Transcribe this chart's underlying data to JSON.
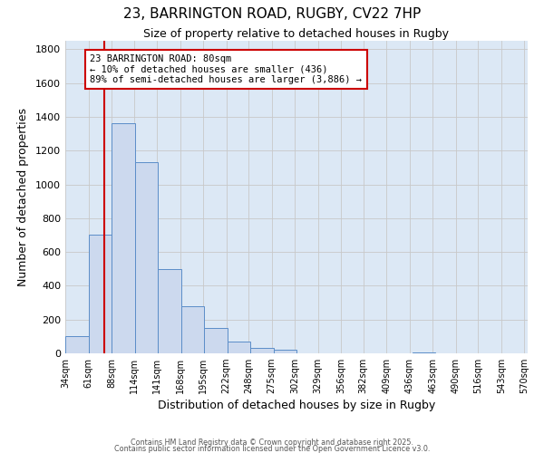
{
  "title": "23, BARRINGTON ROAD, RUGBY, CV22 7HP",
  "subtitle": "Size of property relative to detached houses in Rugby",
  "xlabel": "Distribution of detached houses by size in Rugby",
  "ylabel": "Number of detached properties",
  "bar_values": [
    100,
    700,
    1360,
    1130,
    500,
    280,
    150,
    70,
    30,
    20,
    0,
    0,
    0,
    0,
    0,
    5,
    0,
    0,
    0,
    0
  ],
  "bin_starts": [
    34,
    61,
    88,
    115,
    142,
    169,
    196,
    223,
    250,
    277,
    304,
    331,
    358,
    385,
    412,
    439,
    466,
    493,
    520,
    547
  ],
  "bin_width": 27,
  "tick_labels": [
    "34sqm",
    "61sqm",
    "88sqm",
    "114sqm",
    "141sqm",
    "168sqm",
    "195sqm",
    "222sqm",
    "248sqm",
    "275sqm",
    "302sqm",
    "329sqm",
    "356sqm",
    "382sqm",
    "409sqm",
    "436sqm",
    "463sqm",
    "490sqm",
    "516sqm",
    "543sqm",
    "570sqm"
  ],
  "tick_positions": [
    34,
    61,
    88,
    114,
    141,
    168,
    195,
    222,
    248,
    275,
    302,
    329,
    356,
    382,
    409,
    436,
    463,
    490,
    516,
    543,
    570
  ],
  "bar_color": "#ccd9ee",
  "bar_edge_color": "#5b8dc8",
  "grid_color": "#c8c8c8",
  "bg_color": "#dce8f5",
  "vline_x": 80,
  "vline_color": "#cc0000",
  "annotation_text": "23 BARRINGTON ROAD: 80sqm\n← 10% of detached houses are smaller (436)\n89% of semi-detached houses are larger (3,886) →",
  "annotation_box_color": "#cc0000",
  "ylim": [
    0,
    1850
  ],
  "yticks": [
    0,
    200,
    400,
    600,
    800,
    1000,
    1200,
    1400,
    1600,
    1800
  ],
  "xmin": 34,
  "xmax": 574,
  "footer1": "Contains HM Land Registry data © Crown copyright and database right 2025.",
  "footer2": "Contains public sector information licensed under the Open Government Licence v3.0."
}
